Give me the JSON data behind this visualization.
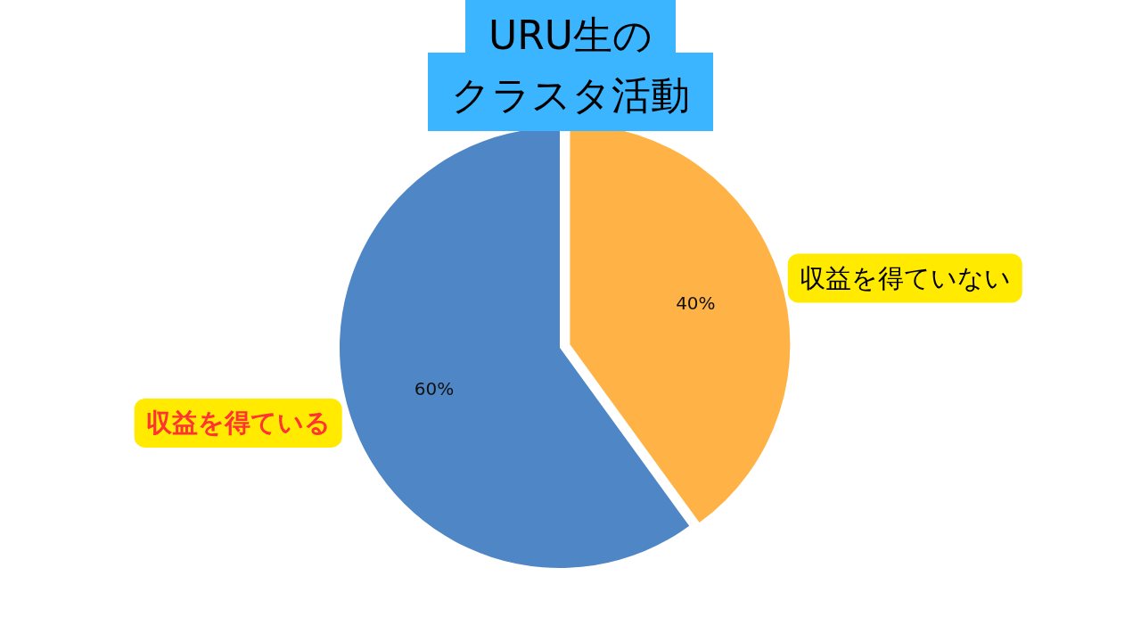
{
  "chart_data": {
    "type": "pie",
    "title": "URU生のクラスタ活動",
    "categories": [
      "収益を得ていない",
      "収益を得ている"
    ],
    "values": [
      40,
      60
    ],
    "colors": [
      "#ffb347",
      "#4f86c6"
    ],
    "value_labels": [
      "40%",
      "60%"
    ]
  }
}
